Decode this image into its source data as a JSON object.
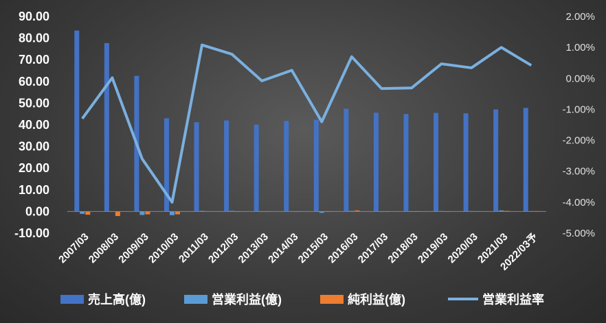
{
  "chart_data": {
    "type": "bar+line",
    "categories": [
      "2007/03",
      "2008/03",
      "2009/03",
      "2010/03",
      "2011/03",
      "2012/03",
      "2013/03",
      "2014/03",
      "2015/03",
      "2016/03",
      "2017/03",
      "2018/03",
      "2019/03",
      "2020/03",
      "2021/03",
      "2022/03予"
    ],
    "series": [
      {
        "name": "売上高(億)",
        "type": "bar",
        "axis": "left",
        "color": "#4472c4",
        "values": [
          83.5,
          77.7,
          62.6,
          43.0,
          41.2,
          42.0,
          40.1,
          41.8,
          42.3,
          47.4,
          45.6,
          45.0,
          45.5,
          45.3,
          47.1,
          47.8
        ]
      },
      {
        "name": "営業利益(億)",
        "type": "bar",
        "axis": "left",
        "color": "#5b9bd5",
        "values": [
          -1.1,
          0.0,
          -1.6,
          -1.7,
          0.3,
          0.3,
          0.0,
          0.1,
          -0.6,
          0.3,
          -0.1,
          -0.1,
          0.2,
          0.2,
          0.5,
          0.2
        ]
      },
      {
        "name": "純利益(億)",
        "type": "bar",
        "axis": "left",
        "color": "#ed7d31",
        "values": [
          -1.5,
          -2.1,
          -1.3,
          -1.3,
          0.1,
          0.0,
          0.0,
          0.0,
          0.0,
          0.5,
          -0.1,
          -0.1,
          0.0,
          0.0,
          0.3,
          0.2
        ]
      },
      {
        "name": "営業利益率",
        "type": "line",
        "axis": "right",
        "color": "#7ab0e0",
        "values": [
          -1.3,
          0.02,
          -2.6,
          -4.0,
          1.08,
          0.78,
          -0.08,
          0.26,
          -1.4,
          0.7,
          -0.33,
          -0.31,
          0.47,
          0.34,
          1.0,
          0.42
        ]
      }
    ],
    "y_left": {
      "min": -10,
      "max": 90,
      "step": 10,
      "ticks": [
        "-10.00",
        "0.00",
        "10.00",
        "20.00",
        "30.00",
        "40.00",
        "50.00",
        "60.00",
        "70.00",
        "80.00",
        "90.00"
      ]
    },
    "y_right": {
      "min": -5,
      "max": 2,
      "step": 1,
      "ticks": [
        "-5.00%",
        "-4.00%",
        "-3.00%",
        "-2.00%",
        "-1.00%",
        "0.00%",
        "1.00%",
        "2.00%"
      ]
    },
    "legend_position": "bottom",
    "grid": false
  }
}
